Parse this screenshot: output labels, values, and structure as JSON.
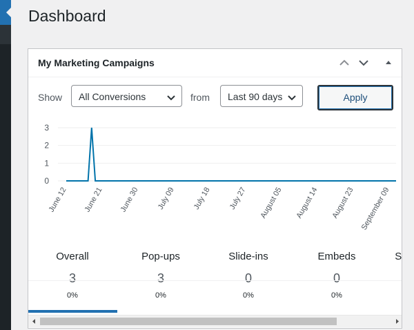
{
  "page": {
    "title": "Dashboard"
  },
  "widget": {
    "title": "My Marketing Campaigns",
    "controls": {
      "move_up_icon": "chevron-up-icon",
      "move_down_icon": "chevron-down-icon",
      "toggle_icon": "triangle-up-icon"
    }
  },
  "filters": {
    "show_label": "Show",
    "conversion_select": "All Conversions",
    "from_label": "from",
    "range_select": "Last 90 days",
    "apply_label": "Apply"
  },
  "chart_data": {
    "type": "line",
    "yticks": [
      "0",
      "1",
      "2",
      "3"
    ],
    "xticks": [
      "June 12",
      "June 21",
      "June 30",
      "July 09",
      "July 18",
      "July 27",
      "August 05",
      "August 14",
      "August 23",
      "September 09"
    ],
    "ylim": [
      0,
      3
    ],
    "line_color": "#0073aa",
    "grid": true,
    "series": [
      {
        "x": [
          "June 12",
          "June 18",
          "June 19",
          "June 20",
          "June 21",
          "September 09"
        ],
        "values": [
          0,
          0,
          3,
          0,
          0,
          0
        ]
      }
    ]
  },
  "stats": [
    {
      "label": "Overall",
      "value": "3",
      "percent": "0%"
    },
    {
      "label": "Pop-ups",
      "value": "3",
      "percent": "0%"
    },
    {
      "label": "Slide-ins",
      "value": "0",
      "percent": "0%"
    },
    {
      "label": "Embeds",
      "value": "0",
      "percent": "0%"
    },
    {
      "label": "Sc",
      "value": "",
      "percent": ""
    }
  ]
}
